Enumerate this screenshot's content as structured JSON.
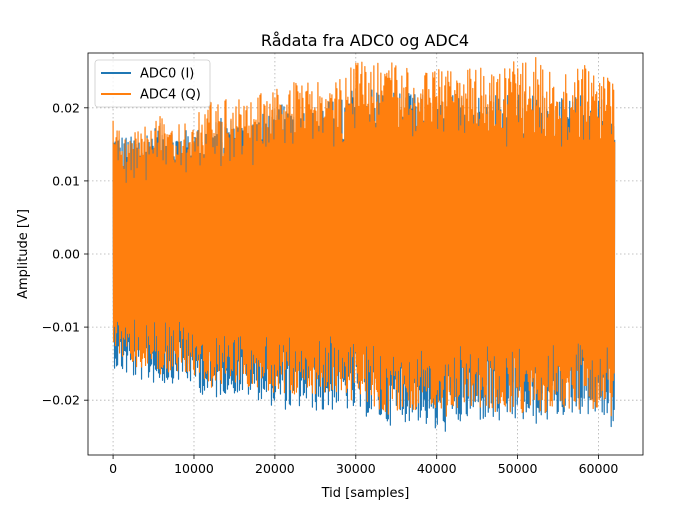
{
  "chart_data": {
    "type": "line",
    "title": "Rådata fra ADC0 og ADC4",
    "xlabel": "Tid [samples]",
    "ylabel": "Amplitude [V]",
    "xlim": [
      -3100,
      65500
    ],
    "ylim": [
      -0.0275,
      0.0275
    ],
    "xticks": [
      0,
      10000,
      20000,
      30000,
      40000,
      50000,
      60000
    ],
    "xtick_labels": [
      "0",
      "10000",
      "20000",
      "30000",
      "40000",
      "50000",
      "60000"
    ],
    "yticks": [
      -0.02,
      -0.01,
      0.0,
      0.01,
      0.02
    ],
    "ytick_labels": [
      "−0.02",
      "−0.01",
      "0.00",
      "0.01",
      "0.02"
    ],
    "grid": true,
    "legend_position": "top-left",
    "series": [
      {
        "name": "ADC0 (I)",
        "color": "#1f77b4",
        "x": [
          0,
          2000,
          4000,
          6000,
          8000,
          10000,
          12000,
          14000,
          16000,
          18000,
          20000,
          22000,
          24000,
          26000,
          28000,
          30000,
          32000,
          34000,
          36000,
          38000,
          40000,
          42000,
          44000,
          46000,
          48000,
          50000,
          52000,
          54000,
          56000,
          58000,
          60000,
          62000
        ],
        "max": [
          0.017,
          0.016,
          0.017,
          0.018,
          0.017,
          0.017,
          0.018,
          0.019,
          0.018,
          0.019,
          0.02,
          0.021,
          0.02,
          0.021,
          0.021,
          0.023,
          0.023,
          0.023,
          0.022,
          0.022,
          0.021,
          0.022,
          0.022,
          0.022,
          0.023,
          0.022,
          0.022,
          0.022,
          0.021,
          0.022,
          0.022,
          0.02
        ],
        "min": [
          -0.0155,
          -0.017,
          -0.0175,
          -0.018,
          -0.0175,
          -0.018,
          -0.0205,
          -0.019,
          -0.0195,
          -0.02,
          -0.021,
          -0.0215,
          -0.021,
          -0.022,
          -0.021,
          -0.022,
          -0.0225,
          -0.0235,
          -0.023,
          -0.023,
          -0.025,
          -0.024,
          -0.023,
          -0.023,
          -0.0235,
          -0.023,
          -0.0235,
          -0.023,
          -0.022,
          -0.022,
          -0.022,
          -0.0245
        ]
      },
      {
        "name": "ADC4 (Q)",
        "color": "#ff7f0e",
        "x": [
          0,
          2000,
          4000,
          6000,
          8000,
          10000,
          12000,
          14000,
          16000,
          18000,
          20000,
          22000,
          24000,
          26000,
          28000,
          30000,
          32000,
          34000,
          36000,
          38000,
          40000,
          42000,
          44000,
          46000,
          48000,
          50000,
          52000,
          54000,
          56000,
          58000,
          60000,
          62000
        ],
        "max": [
          0.0185,
          0.0165,
          0.0175,
          0.019,
          0.0185,
          0.019,
          0.021,
          0.0215,
          0.021,
          0.022,
          0.0225,
          0.0235,
          0.0235,
          0.0235,
          0.024,
          0.0265,
          0.0265,
          0.0265,
          0.0255,
          0.0255,
          0.0255,
          0.025,
          0.0255,
          0.0255,
          0.026,
          0.0265,
          0.027,
          0.026,
          0.0255,
          0.026,
          0.0255,
          0.0235
        ],
        "min": [
          -0.0125,
          -0.0155,
          -0.016,
          -0.0165,
          -0.016,
          -0.0165,
          -0.019,
          -0.018,
          -0.018,
          -0.0185,
          -0.019,
          -0.0195,
          -0.019,
          -0.0195,
          -0.019,
          -0.0205,
          -0.021,
          -0.022,
          -0.0215,
          -0.0215,
          -0.0225,
          -0.0225,
          -0.0215,
          -0.0215,
          -0.022,
          -0.0215,
          -0.0225,
          -0.0215,
          -0.021,
          -0.0215,
          -0.0215,
          -0.0225
        ]
      }
    ]
  }
}
